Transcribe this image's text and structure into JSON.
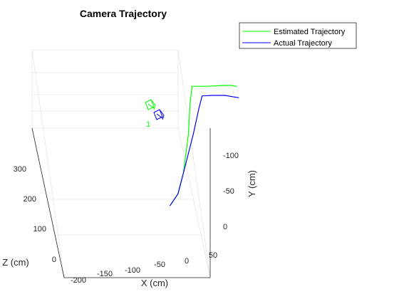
{
  "chart_data": {
    "type": "line",
    "title": "Camera Trajectory",
    "xlabel": "X (cm)",
    "ylabel": "Y (cm)",
    "zlabel": "Z (cm)",
    "x_ticks": [
      "-200",
      "-150",
      "-100",
      "-50",
      "0",
      "50"
    ],
    "y_ticks": [
      "-100",
      "-50",
      "0"
    ],
    "z_ticks": [
      "0",
      "100",
      "200",
      "300"
    ],
    "grid": true,
    "legend_placement": "top-right",
    "start_marker_label": "1",
    "series": [
      {
        "name": "Estimated Trajectory",
        "color": "#00ff00",
        "points": [
          [
            -30,
            15,
            10
          ],
          [
            -55,
            -25,
            60
          ],
          [
            -85,
            -55,
            120
          ],
          [
            -125,
            -80,
            210
          ],
          [
            -160,
            -95,
            280
          ],
          [
            -180,
            -108,
            320
          ],
          [
            -150,
            -122,
            330
          ],
          [
            -95,
            -120,
            330
          ],
          [
            -70,
            -120,
            330
          ],
          [
            -55,
            -122,
            330
          ]
        ]
      },
      {
        "name": "Actual Trajectory",
        "color": "#0000ff",
        "points": [
          [
            -30,
            15,
            10
          ],
          [
            -55,
            -25,
            60
          ],
          [
            -85,
            -55,
            120
          ],
          [
            -110,
            -80,
            210
          ],
          [
            -128,
            -95,
            270
          ],
          [
            -138,
            -105,
            300
          ],
          [
            -118,
            -118,
            310
          ],
          [
            -80,
            -118,
            310
          ],
          [
            -55,
            -122,
            310
          ],
          [
            -42,
            -124,
            310
          ]
        ]
      }
    ]
  }
}
